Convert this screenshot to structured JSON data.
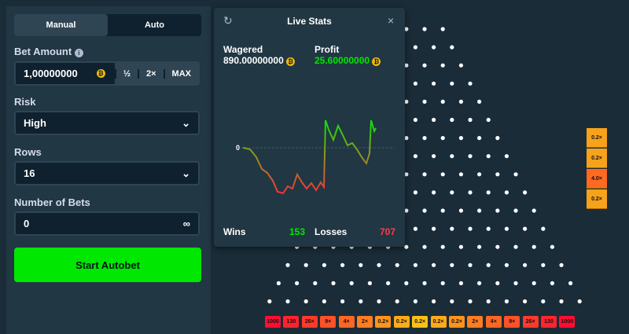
{
  "tabs": [
    "Manual",
    "Auto"
  ],
  "bet_amount": {
    "label": "Bet Amount",
    "value": "1,00000000",
    "buttons": [
      "½",
      "2×",
      "MAX"
    ]
  },
  "risk": {
    "label": "Risk",
    "value": "High"
  },
  "rows": {
    "label": "Rows",
    "value": "16"
  },
  "number_of_bets": {
    "label": "Number of Bets",
    "value": "0",
    "suffix": "∞"
  },
  "start_button": "Start Autobet",
  "live_stats": {
    "title": "Live Stats",
    "wagered_label": "Wagered",
    "wagered": "890.00000000",
    "profit_label": "Profit",
    "profit": "25.60000000",
    "chart_zero_label": "0",
    "wins_label": "Wins",
    "wins": "153",
    "losses_label": "Losses",
    "losses": "707"
  },
  "multipliers": [
    "1000",
    "130",
    "26×",
    "9×",
    "4×",
    "2×",
    "0.2×",
    "0.2×",
    "0.2×",
    "0.2×",
    "0.2×",
    "2×",
    "4×",
    "9×",
    "26×",
    "130",
    "1000"
  ],
  "recent_results": [
    "0.2×",
    "0.2×",
    "4.0×",
    "0.2×"
  ]
}
